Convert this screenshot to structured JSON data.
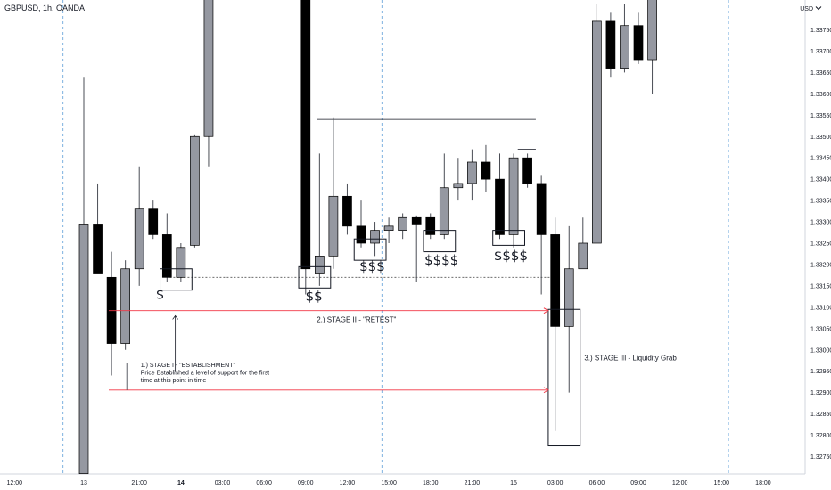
{
  "chart_title": "GBPUSD, 1h, OANDA",
  "currency_label": "USD",
  "currency_icon": "chevron-down-icon",
  "chart_data": {
    "type": "candlestick",
    "title": "GBPUSD, 1h, OANDA",
    "xlabel": "",
    "ylabel": "",
    "ylim": [
      1.32735,
      1.33825
    ],
    "y_ticks": [
      1.3375,
      1.337,
      1.3365,
      1.336,
      1.3355,
      1.335,
      1.3345,
      1.334,
      1.3335,
      1.333,
      1.3325,
      1.332,
      1.3315,
      1.331,
      1.3305,
      1.33,
      1.3295,
      1.329,
      1.3285,
      1.328,
      1.3275
    ],
    "x_ticks": [
      {
        "i": -5,
        "label": "12:00",
        "bold": false
      },
      {
        "i": 0,
        "label": "13",
        "bold": false
      },
      {
        "i": 4,
        "label": "21:00",
        "bold": false
      },
      {
        "i": 7,
        "label": "14",
        "bold": true
      },
      {
        "i": 10,
        "label": "03:00",
        "bold": false
      },
      {
        "i": 13,
        "label": "06:00",
        "bold": false
      },
      {
        "i": 16,
        "label": "09:00",
        "bold": false
      },
      {
        "i": 19,
        "label": "12:00",
        "bold": false
      },
      {
        "i": 22,
        "label": "15:00",
        "bold": false
      },
      {
        "i": 25,
        "label": "18:00",
        "bold": false
      },
      {
        "i": 28,
        "label": "21:00",
        "bold": false
      },
      {
        "i": 31,
        "label": "15",
        "bold": false
      },
      {
        "i": 34,
        "label": "03:00",
        "bold": false
      },
      {
        "i": 37,
        "label": "06:00",
        "bold": false
      },
      {
        "i": 40,
        "label": "09:00",
        "bold": false
      },
      {
        "i": 43,
        "label": "12:00",
        "bold": false
      },
      {
        "i": 46,
        "label": "15:00",
        "bold": false
      },
      {
        "i": 49,
        "label": "18:00",
        "bold": false
      }
    ],
    "candles": [
      {
        "i": 0,
        "o": 1.3271,
        "h": 1.3364,
        "l": 1.3271,
        "c": 1.33295
      },
      {
        "i": 1,
        "o": 1.33295,
        "h": 1.3339,
        "l": 1.3318,
        "c": 1.3318
      },
      {
        "i": 2,
        "o": 1.3317,
        "h": 1.3323,
        "l": 1.3294,
        "c": 1.33015
      },
      {
        "i": 3,
        "o": 1.33015,
        "h": 1.3321,
        "l": 1.33,
        "c": 1.3319
      },
      {
        "i": 4,
        "o": 1.3319,
        "h": 1.3343,
        "l": 1.3315,
        "c": 1.3333
      },
      {
        "i": 5,
        "o": 1.3333,
        "h": 1.3335,
        "l": 1.3326,
        "c": 1.3327
      },
      {
        "i": 6,
        "o": 1.3327,
        "h": 1.3332,
        "l": 1.3316,
        "c": 1.3317
      },
      {
        "i": 7,
        "o": 1.3317,
        "h": 1.3325,
        "l": 1.3316,
        "c": 1.3324
      },
      {
        "i": 8,
        "o": 1.33245,
        "h": 1.33505,
        "l": 1.3324,
        "c": 1.335
      },
      {
        "i": 9,
        "o": 1.335,
        "h": 1.3396,
        "l": 1.3343,
        "c": 1.3392
      },
      {
        "i": 16,
        "o": 1.3395,
        "h": 1.3395,
        "l": 1.3313,
        "c": 1.3319
      },
      {
        "i": 17,
        "o": 1.3318,
        "h": 1.3346,
        "l": 1.3315,
        "c": 1.3322
      },
      {
        "i": 18,
        "o": 1.3322,
        "h": 1.33545,
        "l": 1.3319,
        "c": 1.3336
      },
      {
        "i": 19,
        "o": 1.3336,
        "h": 1.3339,
        "l": 1.3327,
        "c": 1.3329
      },
      {
        "i": 20,
        "o": 1.3329,
        "h": 1.3335,
        "l": 1.3324,
        "c": 1.3325
      },
      {
        "i": 21,
        "o": 1.3325,
        "h": 1.333,
        "l": 1.3322,
        "c": 1.3328
      },
      {
        "i": 22,
        "o": 1.3328,
        "h": 1.3331,
        "l": 1.3325,
        "c": 1.3329
      },
      {
        "i": 23,
        "o": 1.3328,
        "h": 1.3332,
        "l": 1.3326,
        "c": 1.3331
      },
      {
        "i": 24,
        "o": 1.3331,
        "h": 1.33315,
        "l": 1.3316,
        "c": 1.33295
      },
      {
        "i": 25,
        "o": 1.3331,
        "h": 1.3332,
        "l": 1.3326,
        "c": 1.3327
      },
      {
        "i": 26,
        "o": 1.3327,
        "h": 1.3346,
        "l": 1.3326,
        "c": 1.3338
      },
      {
        "i": 27,
        "o": 1.3338,
        "h": 1.3345,
        "l": 1.3335,
        "c": 1.3339
      },
      {
        "i": 28,
        "o": 1.3339,
        "h": 1.3347,
        "l": 1.3335,
        "c": 1.3344
      },
      {
        "i": 29,
        "o": 1.3344,
        "h": 1.3348,
        "l": 1.3337,
        "c": 1.334
      },
      {
        "i": 30,
        "o": 1.334,
        "h": 1.3346,
        "l": 1.3326,
        "c": 1.3327
      },
      {
        "i": 31,
        "o": 1.3327,
        "h": 1.3346,
        "l": 1.3324,
        "c": 1.3345
      },
      {
        "i": 32,
        "o": 1.3345,
        "h": 1.3346,
        "l": 1.3338,
        "c": 1.3339
      },
      {
        "i": 33,
        "o": 1.3339,
        "h": 1.3341,
        "l": 1.3313,
        "c": 1.3327
      },
      {
        "i": 34,
        "o": 1.3327,
        "h": 1.3331,
        "l": 1.3281,
        "c": 1.33055
      },
      {
        "i": 35,
        "o": 1.33055,
        "h": 1.3329,
        "l": 1.329,
        "c": 1.3319
      },
      {
        "i": 36,
        "o": 1.3319,
        "h": 1.3331,
        "l": 1.3319,
        "c": 1.3325
      },
      {
        "i": 37,
        "o": 1.3325,
        "h": 1.3381,
        "l": 1.3325,
        "c": 1.3377
      },
      {
        "i": 38,
        "o": 1.3377,
        "h": 1.3379,
        "l": 1.3364,
        "c": 1.3366
      },
      {
        "i": 39,
        "o": 1.3366,
        "h": 1.3381,
        "l": 1.3365,
        "c": 1.3376
      },
      {
        "i": 40,
        "o": 1.3376,
        "h": 1.3379,
        "l": 1.3367,
        "c": 1.3368
      },
      {
        "i": 41,
        "o": 1.3368,
        "h": 1.3385,
        "l": 1.336,
        "c": 1.3384
      }
    ],
    "session_lines": [
      -1.5,
      21.5,
      46.5
    ],
    "dotted_level": 1.3317,
    "horizontal_lines": [
      {
        "i1": 16.8,
        "i2": 32.6,
        "y": 1.3354
      },
      {
        "i1": 31.3,
        "i2": 32.6,
        "y": 1.3347
      }
    ],
    "boxes": [
      {
        "i1": 5.5,
        "i2": 7.8,
        "y_top": 1.3319,
        "y_bottom": 1.3314
      },
      {
        "i1": 15.5,
        "i2": 17.8,
        "y_top": 1.33195,
        "y_bottom": 1.33145
      },
      {
        "i1": 19.5,
        "i2": 21.8,
        "y_top": 1.3326,
        "y_bottom": 1.3321
      },
      {
        "i1": 24.5,
        "i2": 26.8,
        "y_top": 1.3328,
        "y_bottom": 1.3323
      },
      {
        "i1": 29.5,
        "i2": 31.8,
        "y_top": 1.3328,
        "y_bottom": 1.33245
      },
      {
        "i1": 33.5,
        "i2": 35.8,
        "y_top": 1.33095,
        "y_bottom": 1.32775
      }
    ],
    "arrows": [
      {
        "i1": 1.8,
        "i2": 33.5,
        "y": 1.33092
      },
      {
        "i1": 1.8,
        "i2": 33.5,
        "y": 1.32906
      }
    ],
    "up_arrow": {
      "i": 6.6,
      "y_from": 1.3295,
      "y_to": 1.3308
    },
    "dollar_labels": [
      {
        "i": 5.5,
        "y": 1.3312,
        "text": "$"
      },
      {
        "i": 16.6,
        "y": 1.33115,
        "text": "$$"
      },
      {
        "i": 20.8,
        "y": 1.33185,
        "text": "$$$"
      },
      {
        "i": 25.8,
        "y": 1.332,
        "text": "$$$$"
      },
      {
        "i": 30.8,
        "y": 1.3321,
        "text": "$$$$"
      }
    ],
    "annotations": [
      {
        "i": 4.1,
        "y": 1.3296,
        "lines": [
          "1.) STAGE I - \"ESTABLISHMENT\"",
          "Price Established a level of support for the first",
          "time at this point in time"
        ]
      },
      {
        "i": 16.8,
        "y": 1.33065,
        "lines": [
          "2.) STAGE II - \"RETEST\""
        ]
      },
      {
        "i": 36.1,
        "y": 1.32975,
        "lines": [
          "3.) STAGE III - Liquidity Grab"
        ]
      }
    ]
  }
}
